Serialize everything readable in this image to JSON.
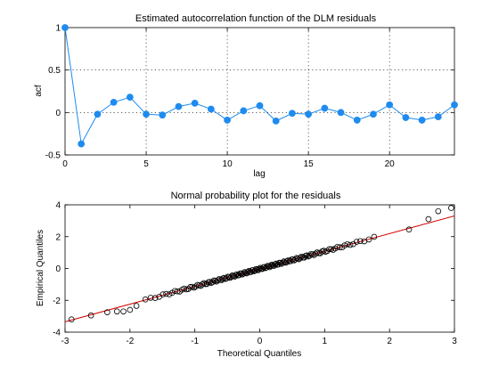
{
  "chart_data": [
    {
      "type": "line",
      "title": "Estimated autocorrelation function of the DLM residuals",
      "xlabel": "lag",
      "ylabel": "acf",
      "xlim": [
        0,
        24
      ],
      "ylim": [
        -0.5,
        1
      ],
      "xticks": [
        0,
        5,
        10,
        15,
        20
      ],
      "yticks": [
        -0.5,
        0,
        0.5,
        1
      ],
      "xtick_labels": [
        "0",
        "5",
        "10",
        "15",
        "20"
      ],
      "ytick_labels": [
        "-0.5",
        "0",
        "0.5",
        "1"
      ],
      "grid": true,
      "color": "#1f8bef",
      "x": [
        0,
        1,
        2,
        3,
        4,
        5,
        6,
        7,
        8,
        9,
        10,
        11,
        12,
        13,
        14,
        15,
        16,
        17,
        18,
        19,
        20,
        21,
        22,
        23,
        24
      ],
      "y": [
        1.0,
        -0.37,
        -0.02,
        0.12,
        0.18,
        -0.02,
        -0.03,
        0.07,
        0.11,
        0.04,
        -0.09,
        0.02,
        0.08,
        -0.1,
        -0.01,
        -0.02,
        0.05,
        0.0,
        -0.09,
        -0.02,
        0.09,
        -0.06,
        -0.09,
        -0.05,
        0.09
      ]
    },
    {
      "type": "scatter",
      "title": "Normal probability plot for the residuals",
      "xlabel": "Theoretical Quantiles",
      "ylabel": "Empirical Quantiles",
      "xlim": [
        -3,
        3
      ],
      "ylim": [
        -4,
        4
      ],
      "xticks": [
        -3,
        -2,
        -1,
        0,
        1,
        2,
        3
      ],
      "yticks": [
        -4,
        -2,
        0,
        2,
        4
      ],
      "xtick_labels": [
        "-3",
        "-2",
        "-1",
        "0",
        "1",
        "2",
        "3"
      ],
      "ytick_labels": [
        "-4",
        "-2",
        "0",
        "2",
        "4"
      ],
      "grid": false,
      "reference_line": {
        "x": [
          -3,
          3
        ],
        "y": [
          -3.35,
          3.3
        ],
        "color": "#d40000"
      },
      "points_count": 150,
      "highlight_points": [
        {
          "x": -2.9,
          "y": -3.2
        },
        {
          "x": -2.6,
          "y": -2.95
        },
        {
          "x": -2.35,
          "y": -2.75
        },
        {
          "x": -2.2,
          "y": -2.7
        },
        {
          "x": -2.1,
          "y": -2.7
        },
        {
          "x": -2.0,
          "y": -2.6
        },
        {
          "x": -1.9,
          "y": -2.35
        },
        {
          "x": 2.3,
          "y": 2.45
        },
        {
          "x": 2.6,
          "y": 3.1
        },
        {
          "x": 2.95,
          "y": 3.8
        },
        {
          "x": 2.75,
          "y": 3.6
        }
      ]
    }
  ]
}
